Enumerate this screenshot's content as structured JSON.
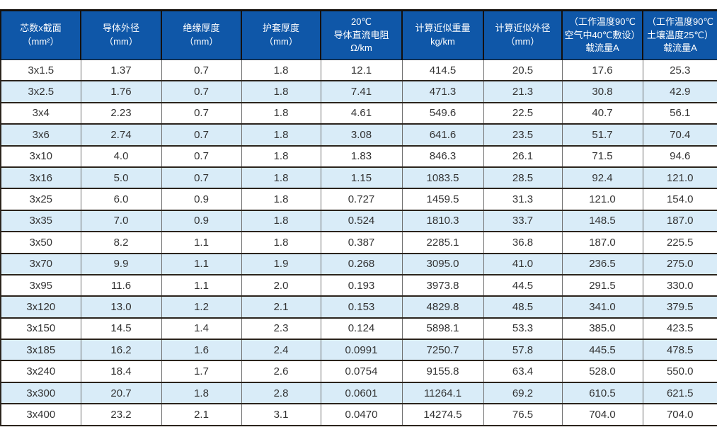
{
  "colors": {
    "header_bg": "#0f57a8",
    "header_text": "#ffffff",
    "row_alt_bg": "#d9ecf8",
    "row_bg": "#ffffff",
    "cell_text": "#333333",
    "border_dark": "#2b241d",
    "border_gray": "#6f6f6f"
  },
  "table": {
    "headers": [
      "芯数x截面\n（mm²）",
      "导体外径\n（mm）",
      "绝缘厚度\n（mm）",
      "护套厚度\n（mm）",
      "20℃\n导体直流电阻\nΩ/km",
      "计算近似重量\nkg/km",
      "计算近似外径\n（mm）",
      "（工作温度90℃\n空气中40℃敷设）\n载流量A",
      "（工作温度90℃\n土壤温度25℃）\n载流量A"
    ]
  },
  "chart_data": {
    "type": "table",
    "title": "",
    "columns": [
      "芯数x截面（mm²）",
      "导体外径（mm）",
      "绝缘厚度（mm）",
      "护套厚度（mm）",
      "20℃导体直流电阻 Ω/km",
      "计算近似重量 kg/km",
      "计算近似外径（mm）",
      "（工作温度90℃ 空气中40℃敷设）载流量A",
      "（工作温度90℃ 土壤温度25℃）载流量A"
    ],
    "rows": [
      [
        "3x1.5",
        "1.37",
        "0.7",
        "1.8",
        "12.1",
        "414.5",
        "20.5",
        "17.6",
        "25.3"
      ],
      [
        "3x2.5",
        "1.76",
        "0.7",
        "1.8",
        "7.41",
        "471.3",
        "21.3",
        "30.8",
        "42.9"
      ],
      [
        "3x4",
        "2.23",
        "0.7",
        "1.8",
        "4.61",
        "549.6",
        "22.5",
        "40.7",
        "56.1"
      ],
      [
        "3x6",
        "2.74",
        "0.7",
        "1.8",
        "3.08",
        "641.6",
        "23.5",
        "51.7",
        "70.4"
      ],
      [
        "3x10",
        "4.0",
        "0.7",
        "1.8",
        "1.83",
        "846.3",
        "26.1",
        "71.5",
        "94.6"
      ],
      [
        "3x16",
        "5.0",
        "0.7",
        "1.8",
        "1.15",
        "1083.5",
        "28.5",
        "92.4",
        "121.0"
      ],
      [
        "3x25",
        "6.0",
        "0.9",
        "1.8",
        "0.727",
        "1459.5",
        "31.3",
        "121.0",
        "154.0"
      ],
      [
        "3x35",
        "7.0",
        "0.9",
        "1.8",
        "0.524",
        "1810.3",
        "33.7",
        "148.5",
        "187.0"
      ],
      [
        "3x50",
        "8.2",
        "1.1",
        "1.8",
        "0.387",
        "2285.1",
        "36.8",
        "187.0",
        "225.5"
      ],
      [
        "3x70",
        "9.9",
        "1.1",
        "1.9",
        "0.268",
        "3095.0",
        "41.0",
        "236.5",
        "275.0"
      ],
      [
        "3x95",
        "11.6",
        "1.1",
        "2.0",
        "0.193",
        "3973.8",
        "44.5",
        "291.5",
        "330.0"
      ],
      [
        "3x120",
        "13.0",
        "1.2",
        "2.1",
        "0.153",
        "4829.8",
        "48.5",
        "341.0",
        "379.5"
      ],
      [
        "3x150",
        "14.5",
        "1.4",
        "2.3",
        "0.124",
        "5898.1",
        "53.3",
        "385.0",
        "423.5"
      ],
      [
        "3x185",
        "16.2",
        "1.6",
        "2.4",
        "0.0991",
        "7250.7",
        "57.8",
        "445.5",
        "478.5"
      ],
      [
        "3x240",
        "18.4",
        "1.7",
        "2.6",
        "0.0754",
        "9155.8",
        "63.4",
        "528.0",
        "550.0"
      ],
      [
        "3x300",
        "20.7",
        "1.8",
        "2.8",
        "0.0601",
        "11264.1",
        "69.2",
        "610.5",
        "621.5"
      ],
      [
        "3x400",
        "23.2",
        "2.1",
        "3.1",
        "0.0470",
        "14274.5",
        "76.5",
        "704.0",
        "704.0"
      ]
    ]
  }
}
